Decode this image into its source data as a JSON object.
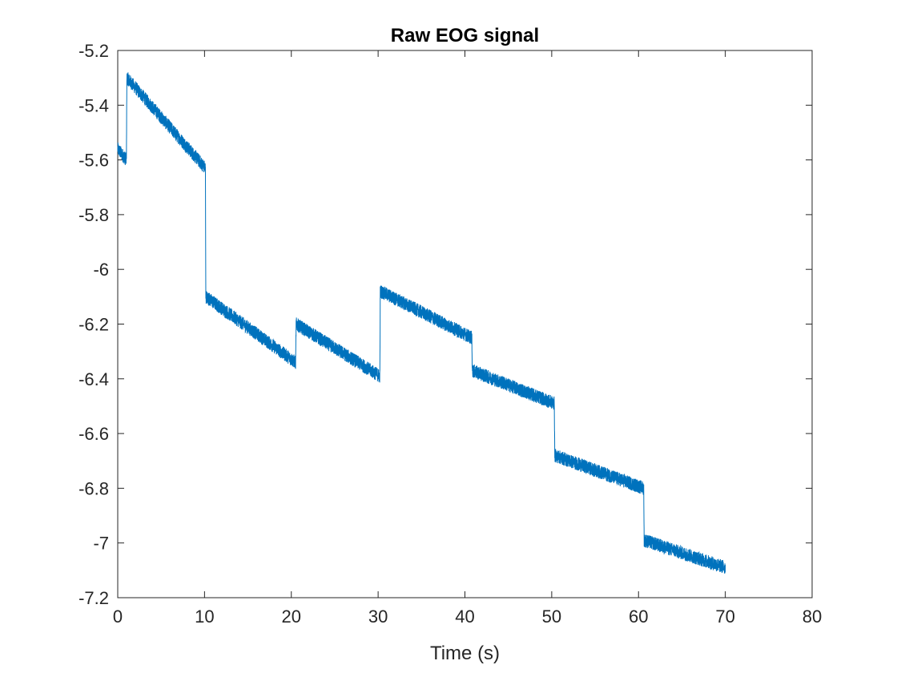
{
  "chart_data": {
    "type": "line",
    "title": "Raw EOG signal",
    "xlabel": "Time (s)",
    "ylabel": "",
    "xlim": [
      0,
      80
    ],
    "ylim": [
      -7.2,
      -5.2
    ],
    "x_ticks": [
      0,
      10,
      20,
      30,
      40,
      50,
      60,
      70,
      80
    ],
    "x_tick_labels": [
      "0",
      "10",
      "20",
      "30",
      "40",
      "50",
      "60",
      "70",
      "80"
    ],
    "y_ticks": [
      -5.2,
      -5.4,
      -5.6,
      -5.8,
      -6,
      -6.2,
      -6.4,
      -6.6,
      -6.8,
      -7,
      -7.2
    ],
    "y_tick_labels": [
      "-5.2",
      "-5.4",
      "-5.6",
      "-5.8",
      "-6",
      "-6.2",
      "-6.4",
      "-6.6",
      "-6.8",
      "-7",
      "-7.2"
    ],
    "grid": false,
    "line_color": "#0072BD",
    "series": [
      {
        "x": [
          0,
          1,
          1.05,
          10.1,
          10.15,
          20.5,
          20.55,
          30.2,
          30.25,
          40.8,
          40.85,
          50.3,
          50.35,
          60.6,
          60.65,
          70
        ],
        "y": [
          -5.56,
          -5.6,
          -5.3,
          -5.63,
          -6.1,
          -6.34,
          -6.2,
          -6.39,
          -6.08,
          -6.25,
          -6.37,
          -6.49,
          -6.68,
          -6.8,
          -6.99,
          -7.09
        ],
        "noise_band": 0.025
      }
    ]
  }
}
